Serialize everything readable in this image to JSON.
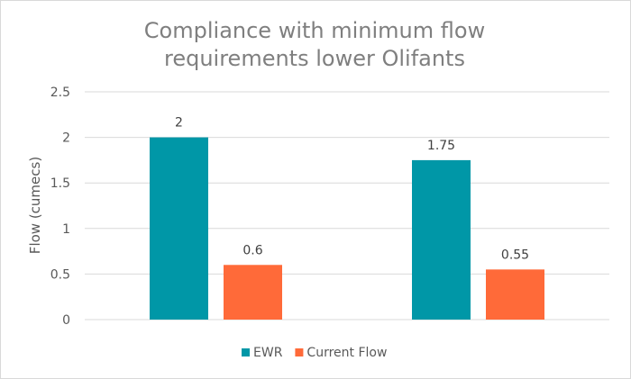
{
  "chart_data": {
    "type": "bar",
    "title_lines": [
      "Compliance with minimum flow",
      "requirements lower Olifants"
    ],
    "ylabel": "Flow (cumecs)",
    "xlabel": "",
    "categories": [
      "",
      ""
    ],
    "ylim": [
      0,
      2.5
    ],
    "yticks": [
      "0",
      "0.5",
      "1",
      "1.5",
      "2",
      "2.5"
    ],
    "ytick_values": [
      0,
      0.5,
      1,
      1.5,
      2,
      2.5
    ],
    "grid": true,
    "legend_position": "bottom",
    "series": [
      {
        "name": "EWR",
        "values": [
          2,
          1.75
        ],
        "labels": [
          "2",
          "1.75"
        ],
        "color": "#0097a7"
      },
      {
        "name": "Current Flow",
        "values": [
          0.6,
          0.55
        ],
        "labels": [
          "0.6",
          "0.55"
        ],
        "color": "#ff6a39"
      }
    ]
  }
}
